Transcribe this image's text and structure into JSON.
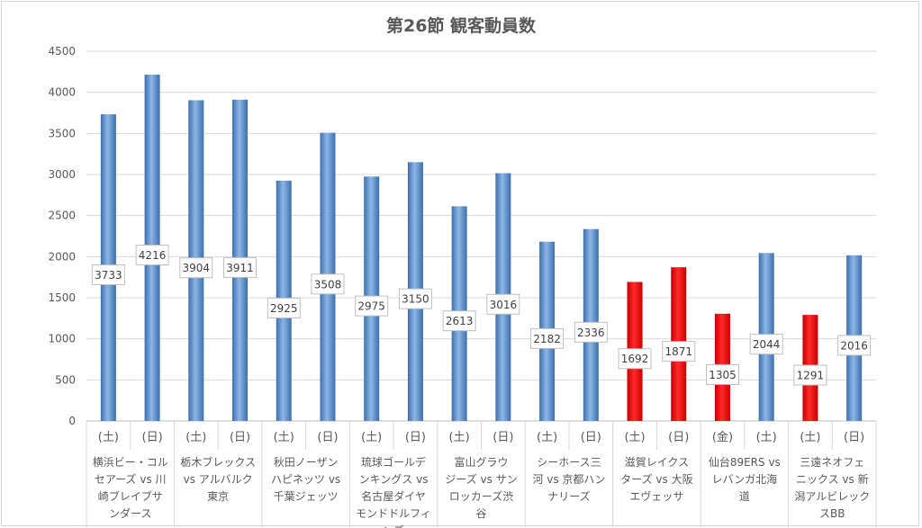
{
  "chart_data": {
    "type": "bar",
    "title": "第26節 観客動員数",
    "ylim": [
      0,
      4500
    ],
    "yticks": [
      0,
      500,
      1000,
      1500,
      2000,
      2500,
      3000,
      3500,
      4000,
      4500
    ],
    "grid": true,
    "legend": "none",
    "categories": [
      {
        "day": "(土)",
        "value": 3733,
        "color": "#4f86c6"
      },
      {
        "day": "(日)",
        "value": 4216,
        "color": "#4f86c6"
      },
      {
        "day": "(土)",
        "value": 3904,
        "color": "#4f86c6"
      },
      {
        "day": "(日)",
        "value": 3911,
        "color": "#4f86c6"
      },
      {
        "day": "(土)",
        "value": 2925,
        "color": "#4f86c6"
      },
      {
        "day": "(日)",
        "value": 3508,
        "color": "#4f86c6"
      },
      {
        "day": "(土)",
        "value": 2975,
        "color": "#4f86c6"
      },
      {
        "day": "(日)",
        "value": 3150,
        "color": "#4f86c6"
      },
      {
        "day": "(土)",
        "value": 2613,
        "color": "#4f86c6"
      },
      {
        "day": "(日)",
        "value": 3016,
        "color": "#4f86c6"
      },
      {
        "day": "(土)",
        "value": 2182,
        "color": "#4f86c6"
      },
      {
        "day": "(日)",
        "value": 2336,
        "color": "#4f86c6"
      },
      {
        "day": "(土)",
        "value": 1692,
        "color": "#e00000"
      },
      {
        "day": "(日)",
        "value": 1871,
        "color": "#e00000"
      },
      {
        "day": "(金)",
        "value": 1305,
        "color": "#e00000"
      },
      {
        "day": "(土)",
        "value": 2044,
        "color": "#4f86c6"
      },
      {
        "day": "(土)",
        "value": 1291,
        "color": "#e00000"
      },
      {
        "day": "(日)",
        "value": 2016,
        "color": "#4f86c6"
      }
    ],
    "groups": [
      {
        "lines": [
          "横浜ビー・コル",
          "セアーズ vs 川",
          "崎ブレイブサ",
          "ンダース"
        ]
      },
      {
        "lines": [
          "栃木ブレックス",
          "vs アルバルク",
          "東京"
        ]
      },
      {
        "lines": [
          "秋田ノーザン",
          "ハピネッツ vs",
          "千葉ジェッツ"
        ]
      },
      {
        "lines": [
          "琉球ゴールデ",
          "ンキングス vs",
          "名古屋ダイヤ",
          "モンドドルフィ",
          "ンズ"
        ]
      },
      {
        "lines": [
          "富山グラウ",
          "ジーズ vs サン",
          "ロッカーズ渋",
          "谷"
        ]
      },
      {
        "lines": [
          "シーホース三",
          "河 vs 京都ハン",
          "ナリーズ"
        ]
      },
      {
        "lines": [
          "滋賀レイクス",
          "ターズ vs 大阪",
          "エヴェッサ"
        ]
      },
      {
        "lines": [
          "仙台89ERS vs",
          "レバンガ北海",
          "道"
        ]
      },
      {
        "lines": [
          "三遠ネオフェ",
          "ニックス vs 新",
          "潟アルビレック",
          "スBB"
        ]
      }
    ]
  }
}
